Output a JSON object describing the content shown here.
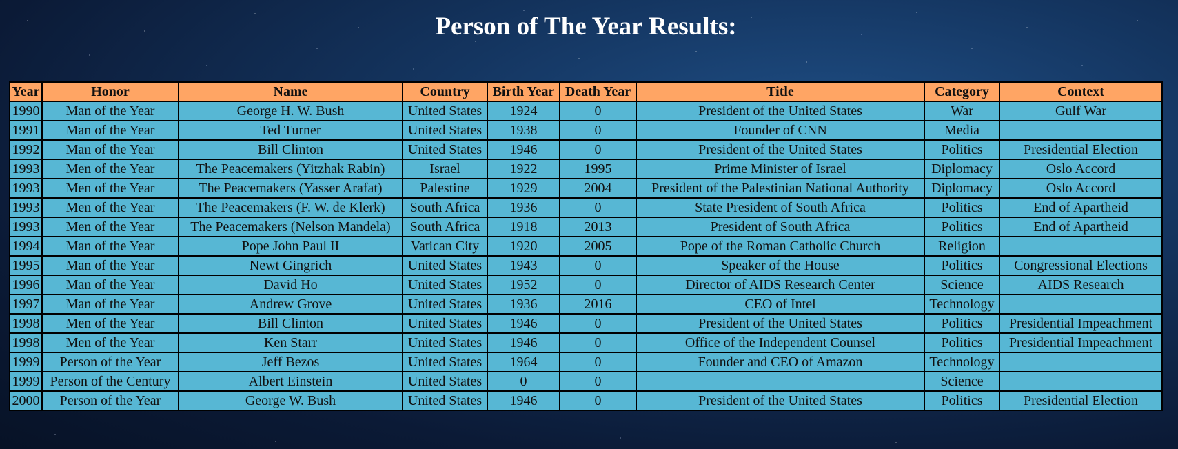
{
  "page": {
    "title": "Person of The Year Results:"
  },
  "colors": {
    "header_bg": "#ffa564",
    "cell_bg": "#57b7d4",
    "title_text": "#ffffff"
  },
  "table": {
    "columns": [
      "Year",
      "Honor",
      "Name",
      "Country",
      "Birth Year",
      "Death Year",
      "Title",
      "Category",
      "Context"
    ],
    "rows": [
      [
        "1990",
        "Man of the Year",
        "George H. W. Bush",
        "United States",
        "1924",
        "0",
        "President of the United States",
        "War",
        "Gulf War"
      ],
      [
        "1991",
        "Man of the Year",
        "Ted Turner",
        "United States",
        "1938",
        "0",
        "Founder of CNN",
        "Media",
        ""
      ],
      [
        "1992",
        "Man of the Year",
        "Bill Clinton",
        "United States",
        "1946",
        "0",
        "President of the United States",
        "Politics",
        "Presidential Election"
      ],
      [
        "1993",
        "Men of the Year",
        "The Peacemakers (Yitzhak Rabin)",
        "Israel",
        "1922",
        "1995",
        "Prime Minister of Israel",
        "Diplomacy",
        "Oslo Accord"
      ],
      [
        "1993",
        "Men of the Year",
        "The Peacemakers (Yasser Arafat)",
        "Palestine",
        "1929",
        "2004",
        "President of the Palestinian National Authority",
        "Diplomacy",
        "Oslo Accord"
      ],
      [
        "1993",
        "Men of the Year",
        "The Peacemakers (F. W. de Klerk)",
        "South Africa",
        "1936",
        "0",
        "State President of South Africa",
        "Politics",
        "End of Apartheid"
      ],
      [
        "1993",
        "Men of the Year",
        "The Peacemakers (Nelson Mandela)",
        "South Africa",
        "1918",
        "2013",
        "President of South Africa",
        "Politics",
        "End of Apartheid"
      ],
      [
        "1994",
        "Man of the Year",
        "Pope John Paul II",
        "Vatican City",
        "1920",
        "2005",
        "Pope of the Roman Catholic Church",
        "Religion",
        ""
      ],
      [
        "1995",
        "Man of the Year",
        "Newt Gingrich",
        "United States",
        "1943",
        "0",
        "Speaker of the House",
        "Politics",
        "Congressional Elections"
      ],
      [
        "1996",
        "Man of the Year",
        "David Ho",
        "United States",
        "1952",
        "0",
        "Director of AIDS Research Center",
        "Science",
        "AIDS Research"
      ],
      [
        "1997",
        "Man of the Year",
        "Andrew Grove",
        "United States",
        "1936",
        "2016",
        "CEO of Intel",
        "Technology",
        ""
      ],
      [
        "1998",
        "Men of the Year",
        "Bill Clinton",
        "United States",
        "1946",
        "0",
        "President of the United States",
        "Politics",
        "Presidential Impeachment"
      ],
      [
        "1998",
        "Men of the Year",
        "Ken Starr",
        "United States",
        "1946",
        "0",
        "Office of the Independent Counsel",
        "Politics",
        "Presidential Impeachment"
      ],
      [
        "1999",
        "Person of the Year",
        "Jeff Bezos",
        "United States",
        "1964",
        "0",
        "Founder and CEO of Amazon",
        "Technology",
        ""
      ],
      [
        "1999",
        "Person of the Century",
        "Albert Einstein",
        "United States",
        "0",
        "0",
        "",
        "Science",
        ""
      ],
      [
        "2000",
        "Person of the Year",
        "George W. Bush",
        "United States",
        "1946",
        "0",
        "President of the United States",
        "Politics",
        "Presidential Election"
      ]
    ]
  }
}
